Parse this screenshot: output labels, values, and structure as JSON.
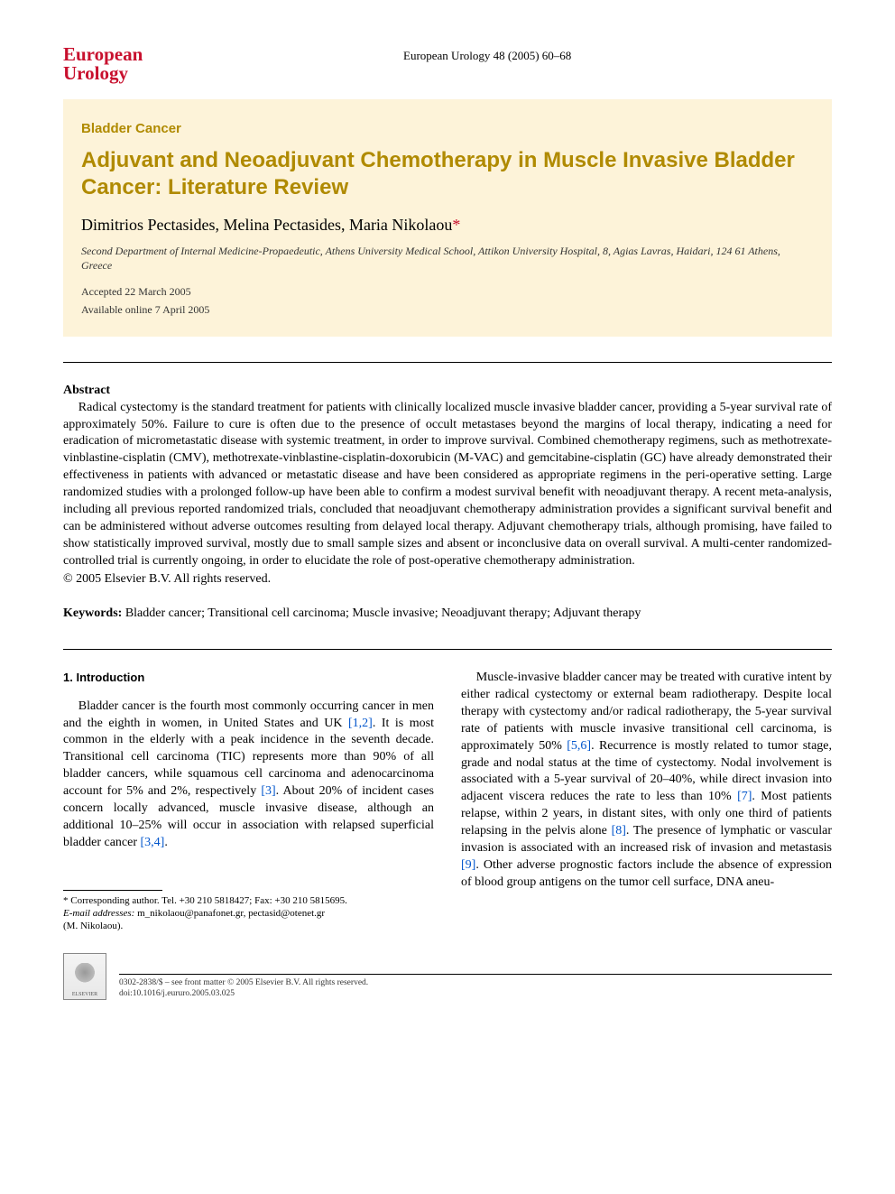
{
  "header": {
    "journal_line1": "European",
    "journal_line2": "Urology",
    "citation": "European Urology 48 (2005) 60–68"
  },
  "cream": {
    "section_label": "Bladder Cancer",
    "title": "Adjuvant and Neoadjuvant Chemotherapy in Muscle Invasive Bladder Cancer: Literature Review",
    "authors_plain": "Dimitrios Pectasides, Melina Pectasides, Maria Nikolaou",
    "asterisk": "*",
    "affiliation": "Second Department of Internal Medicine-Propaedeutic, Athens University Medical School, Attikon University Hospital, 8, Agias Lavras, Haidari, 124 61 Athens, Greece",
    "accepted": "Accepted 22 March 2005",
    "available": "Available online 7 April 2005"
  },
  "abstract": {
    "heading": "Abstract",
    "text": "Radical cystectomy is the standard treatment for patients with clinically localized muscle invasive bladder cancer, providing a 5-year survival rate of approximately 50%. Failure to cure is often due to the presence of occult metastases beyond the margins of local therapy, indicating a need for eradication of micrometastatic disease with systemic treatment, in order to improve survival. Combined chemotherapy regimens, such as methotrexate-vinblastine-cisplatin (CMV), methotrexate-vinblastine-cisplatin-doxorubicin (M-VAC) and gemcitabine-cisplatin (GC) have already demonstrated their effectiveness in patients with advanced or metastatic disease and have been considered as appropriate regimens in the peri-operative setting. Large randomized studies with a prolonged follow-up have been able to confirm a modest survival benefit with neoadjuvant therapy. A recent meta-analysis, including all previous reported randomized trials, concluded that neoadjuvant chemotherapy administration provides a significant survival benefit and can be administered without adverse outcomes resulting from delayed local therapy. Adjuvant chemotherapy trials, although promising, have failed to show statistically improved survival, mostly due to small sample sizes and absent or inconclusive data on overall survival. A multi-center randomized-controlled trial is currently ongoing, in order to elucidate the role of post-operative chemotherapy administration.",
    "copyright": "© 2005 Elsevier B.V. All rights reserved."
  },
  "keywords": {
    "label": "Keywords:",
    "text": " Bladder cancer; Transitional cell carcinoma; Muscle invasive; Neoadjuvant therapy; Adjuvant therapy"
  },
  "body": {
    "section_number": "1.",
    "section_title": "Introduction",
    "para1_a": "Bladder cancer is the fourth most commonly occurring cancer in men and the eighth in women, in United States and UK ",
    "ref1": "[1,2]",
    "para1_b": ". It is most common in the elderly with a peak incidence in the seventh decade. Transitional cell carcinoma (TIC) represents more than 90% of all bladder cancers, while squamous cell carcinoma and adenocarcinoma account for 5% and 2%, respectively ",
    "ref2": "[3]",
    "para1_c": ". About 20% of incident cases concern locally advanced, muscle invasive disease, although an additional 10–25% will occur in association with relapsed superficial bladder cancer ",
    "ref3": "[3,4]",
    "para1_d": ".",
    "para2_a": "Muscle-invasive bladder cancer may be treated with curative intent by either radical cystectomy or external beam radiotherapy. Despite local therapy with cystectomy and/or radical radiotherapy, the 5-year survival rate of patients with muscle invasive transitional cell carcinoma, is approximately 50% ",
    "ref4": "[5,6]",
    "para2_b": ". Recurrence is mostly related to tumor stage, grade and nodal status at the time of cystectomy. Nodal involvement is associated with a 5-year survival of 20–40%, while direct invasion into adjacent viscera reduces the rate to less than 10% ",
    "ref5": "[7]",
    "para2_c": ". Most patients relapse, within 2 years, in distant sites, with only one third of patients relapsing in the pelvis alone ",
    "ref6": "[8]",
    "para2_d": ". The presence of lymphatic or vascular invasion is associated with an increased risk of invasion and metastasis ",
    "ref7": "[9]",
    "para2_e": ". Other adverse prognostic factors include the absence of expression of blood group antigens on the tumor cell surface, DNA aneu-"
  },
  "footnote": {
    "corr": "* Corresponding author. Tel. +30 210 5818427; Fax: +30 210 5815695.",
    "email_label": "E-mail addresses:",
    "emails": " m_nikolaou@panafonet.gr, pectasid@otenet.gr",
    "name": "(M. Nikolaou)."
  },
  "footer": {
    "elsevier": "ELSEVIER",
    "line": "0302-2838/$ – see front matter © 2005 Elsevier B.V. All rights reserved.",
    "doi": "doi:10.1016/j.eururo.2005.03.025"
  },
  "colors": {
    "brand_red": "#c8102e",
    "gold": "#b08a00",
    "cream": "#fdf3d9",
    "link": "#0055cc"
  }
}
